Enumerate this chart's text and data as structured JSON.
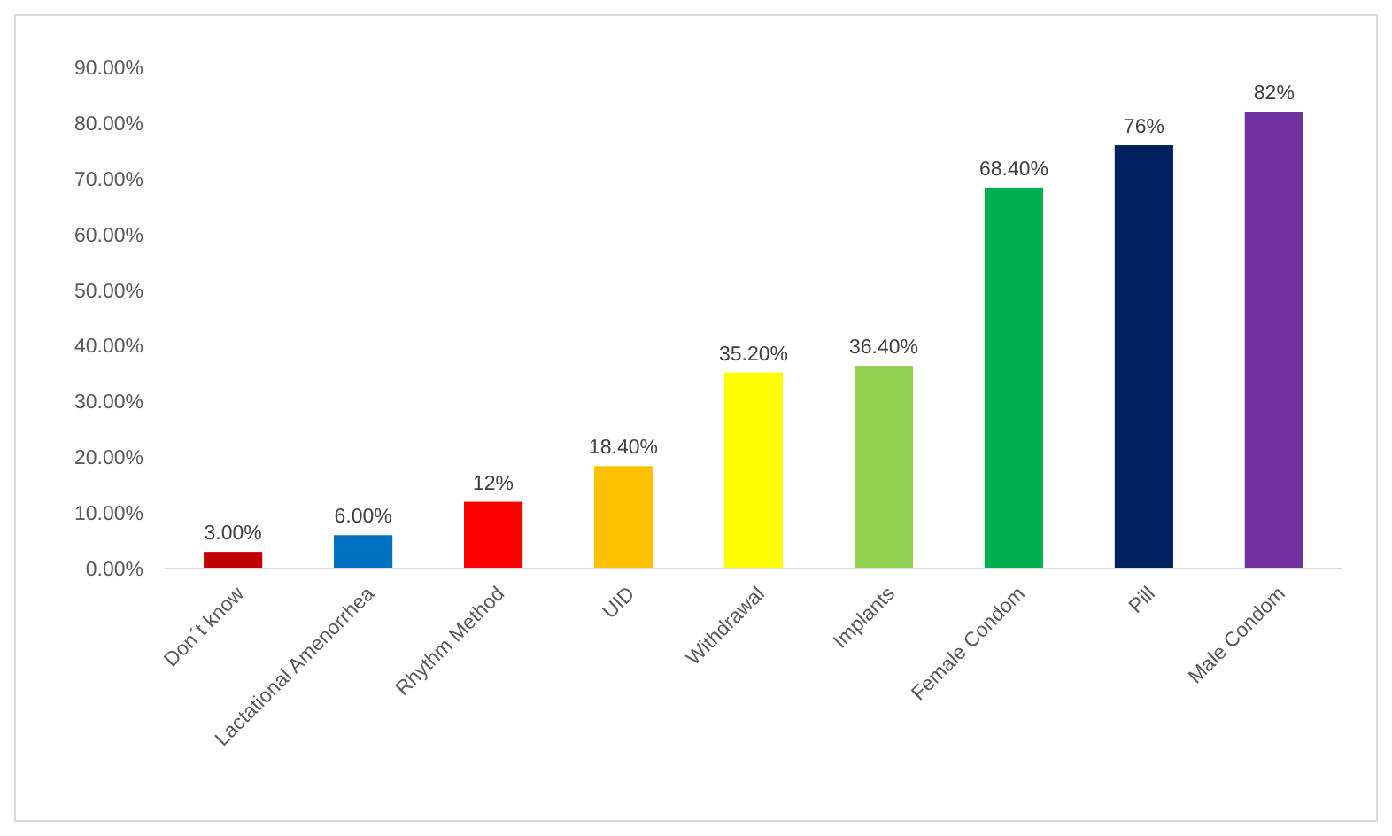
{
  "chart_data": {
    "type": "bar",
    "categories": [
      "Don´t know",
      "Lactational Amenorrhea",
      "Rhythm Method",
      "UID",
      "Withdrawal",
      "Implants",
      "Female Condom",
      "Pill",
      "Male Condom"
    ],
    "values": [
      3,
      6,
      12,
      18.4,
      35.2,
      36.4,
      68.4,
      76,
      82
    ],
    "colors": [
      "#c00000",
      "#0070c0",
      "#ff0000",
      "#ffc000",
      "#ffff00",
      "#92d050",
      "#00b050",
      "#002060",
      "#7030a0"
    ],
    "value_labels": [
      "3.00%",
      "6.00%",
      "12%",
      "18.40%",
      "35.20%",
      "36.40%",
      "68.40%",
      "76%",
      "82%"
    ],
    "ylim": [
      0,
      90
    ],
    "yticks": [
      {
        "value": 0,
        "label": "0.00%"
      },
      {
        "value": 10,
        "label": "10.00%"
      },
      {
        "value": 20,
        "label": "20.00%"
      },
      {
        "value": 30,
        "label": "30.00%"
      },
      {
        "value": 40,
        "label": "40.00%"
      },
      {
        "value": 50,
        "label": "50.00%"
      },
      {
        "value": 60,
        "label": "60.00%"
      },
      {
        "value": 70,
        "label": "70.00%"
      },
      {
        "value": 80,
        "label": "80.00%"
      },
      {
        "value": 90,
        "label": "90.00%"
      }
    ]
  }
}
